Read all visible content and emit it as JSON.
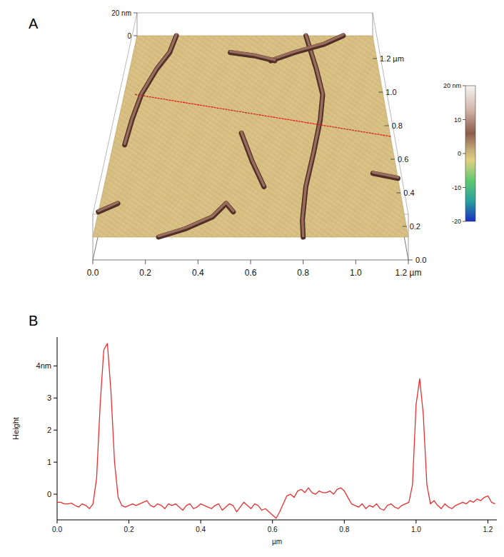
{
  "chart_data": [
    {
      "type": "afm_3d",
      "panel": "A",
      "xlim": [
        0,
        1.2
      ],
      "xticks": [
        {
          "value": 0,
          "label": "0.0"
        },
        {
          "value": 0.2,
          "label": "0.2"
        },
        {
          "value": 0.4,
          "label": "0.4"
        },
        {
          "value": 0.6,
          "label": "0.6"
        },
        {
          "value": 0.8,
          "label": "0.8"
        },
        {
          "value": 1.0,
          "label": "1.0"
        },
        {
          "value": 1.2,
          "label": "1.2 µm"
        }
      ],
      "ylim": [
        0,
        1.2
      ],
      "yticks": [
        {
          "value": 0,
          "label": "0.0"
        },
        {
          "value": 0.2,
          "label": "0.2"
        },
        {
          "value": 0.4,
          "label": "0.4"
        },
        {
          "value": 0.6,
          "label": "0.6"
        },
        {
          "value": 0.8,
          "label": "0.8"
        },
        {
          "value": 1.0,
          "label": "1.0"
        },
        {
          "value": 1.2,
          "label": "1.2 µm"
        }
      ],
      "zlim": [
        -20,
        20
      ],
      "zticks": [
        {
          "value": 20,
          "label": "20 nm"
        },
        0
      ],
      "colorbar": {
        "range": [
          -20,
          20
        ],
        "ticks": [
          {
            "value": 20,
            "label": "20 nm"
          },
          10,
          0,
          -10,
          -20
        ]
      },
      "fibers": [
        [
          [
            0.2,
            1.2
          ],
          [
            0.18,
            1.1
          ],
          [
            0.13,
            1.0
          ],
          [
            0.08,
            0.85
          ],
          [
            0.06,
            0.7
          ],
          [
            0.05,
            0.55
          ]
        ],
        [
          [
            0.86,
            1.2
          ],
          [
            0.9,
            1.0
          ],
          [
            0.92,
            0.85
          ],
          [
            0.9,
            0.7
          ],
          [
            0.86,
            0.5
          ],
          [
            0.82,
            0.3
          ],
          [
            0.8,
            0.1
          ],
          [
            0.8,
            0.0
          ]
        ],
        [
          [
            0.68,
            1.05
          ],
          [
            0.8,
            1.1
          ],
          [
            0.95,
            1.15
          ],
          [
            1.05,
            1.2
          ]
        ],
        [
          [
            0.48,
            1.1
          ],
          [
            0.6,
            1.08
          ],
          [
            0.7,
            1.05
          ]
        ],
        [
          [
            0.55,
            0.62
          ],
          [
            0.6,
            0.45
          ],
          [
            0.65,
            0.3
          ]
        ],
        [
          [
            0.25,
            0.0
          ],
          [
            0.35,
            0.05
          ],
          [
            0.45,
            0.12
          ],
          [
            0.5,
            0.2
          ],
          [
            0.53,
            0.15
          ]
        ],
        [
          [
            0.0,
            0.15
          ],
          [
            0.07,
            0.2
          ]
        ],
        [
          [
            1.1,
            0.38
          ],
          [
            1.2,
            0.35
          ]
        ]
      ],
      "profile_line": {
        "start": [
          0.05,
          0.85
        ],
        "end": [
          1.2,
          0.6
        ],
        "color": "#e02020"
      }
    },
    {
      "type": "line",
      "panel": "B",
      "xlabel": "µm",
      "ylabel": "Height",
      "color": "#e83030",
      "xlim": [
        0,
        1.225
      ],
      "xticks": [
        {
          "value": 0,
          "label": "0.0"
        },
        {
          "value": 0.2,
          "label": "0.2"
        },
        {
          "value": 0.4,
          "label": "0.4"
        },
        {
          "value": 0.6,
          "label": "0.6"
        },
        {
          "value": 0.8,
          "label": "0.8"
        },
        {
          "value": 1.0,
          "label": "1.0"
        },
        {
          "value": 1.2,
          "label": "1.2"
        }
      ],
      "ylim": [
        -0.8,
        4.9
      ],
      "yticks": [
        0,
        1,
        2,
        3,
        {
          "value": 4,
          "label": "4nm"
        }
      ],
      "x": [
        0,
        0.01,
        0.02,
        0.03,
        0.04,
        0.05,
        0.06,
        0.07,
        0.08,
        0.09,
        0.1,
        0.11,
        0.12,
        0.13,
        0.14,
        0.15,
        0.16,
        0.17,
        0.18,
        0.19,
        0.2,
        0.21,
        0.22,
        0.23,
        0.24,
        0.25,
        0.26,
        0.27,
        0.28,
        0.29,
        0.3,
        0.31,
        0.32,
        0.33,
        0.34,
        0.35,
        0.36,
        0.37,
        0.38,
        0.39,
        0.4,
        0.41,
        0.42,
        0.43,
        0.44,
        0.45,
        0.46,
        0.47,
        0.48,
        0.49,
        0.5,
        0.51,
        0.52,
        0.53,
        0.54,
        0.55,
        0.56,
        0.57,
        0.58,
        0.59,
        0.6,
        0.61,
        0.62,
        0.63,
        0.64,
        0.65,
        0.66,
        0.67,
        0.68,
        0.69,
        0.7,
        0.71,
        0.72,
        0.73,
        0.74,
        0.75,
        0.76,
        0.77,
        0.78,
        0.79,
        0.8,
        0.81,
        0.82,
        0.83,
        0.84,
        0.85,
        0.86,
        0.87,
        0.88,
        0.89,
        0.9,
        0.91,
        0.92,
        0.93,
        0.94,
        0.95,
        0.96,
        0.97,
        0.98,
        0.99,
        1.0,
        1.01,
        1.02,
        1.03,
        1.04,
        1.05,
        1.06,
        1.07,
        1.08,
        1.09,
        1.1,
        1.11,
        1.12,
        1.13,
        1.14,
        1.15,
        1.16,
        1.17,
        1.18,
        1.19,
        1.2,
        1.21,
        1.22
      ],
      "values": [
        -0.25,
        -0.25,
        -0.3,
        -0.3,
        -0.28,
        -0.35,
        -0.4,
        -0.3,
        -0.35,
        -0.45,
        -0.3,
        0.5,
        2.8,
        4.5,
        4.7,
        3.2,
        1.0,
        -0.1,
        -0.35,
        -0.4,
        -0.35,
        -0.3,
        -0.35,
        -0.3,
        -0.25,
        -0.2,
        -0.35,
        -0.4,
        -0.3,
        -0.35,
        -0.45,
        -0.3,
        -0.35,
        -0.3,
        -0.4,
        -0.5,
        -0.35,
        -0.3,
        -0.45,
        -0.4,
        -0.3,
        -0.35,
        -0.4,
        -0.45,
        -0.35,
        -0.3,
        -0.5,
        -0.4,
        -0.3,
        -0.35,
        -0.55,
        -0.4,
        -0.25,
        -0.35,
        -0.45,
        -0.3,
        -0.35,
        -0.5,
        -0.45,
        -0.55,
        -0.65,
        -0.75,
        -0.55,
        -0.3,
        -0.05,
        0.0,
        -0.1,
        0.1,
        0.15,
        0.05,
        0.2,
        0.05,
        0.0,
        0.1,
        0.05,
        0.05,
        0.1,
        0.0,
        0.15,
        0.2,
        0.1,
        -0.1,
        -0.3,
        -0.35,
        -0.4,
        -0.3,
        -0.45,
        -0.35,
        -0.4,
        -0.3,
        -0.45,
        -0.5,
        -0.35,
        -0.3,
        -0.4,
        -0.45,
        -0.35,
        -0.3,
        -0.25,
        0.3,
        2.8,
        3.6,
        2.5,
        0.3,
        -0.3,
        -0.2,
        -0.35,
        -0.45,
        -0.3,
        -0.4,
        -0.45,
        -0.35,
        -0.3,
        -0.25,
        -0.3,
        -0.2,
        -0.25,
        -0.15,
        -0.2,
        -0.1,
        -0.05,
        -0.25,
        -0.3
      ]
    }
  ]
}
